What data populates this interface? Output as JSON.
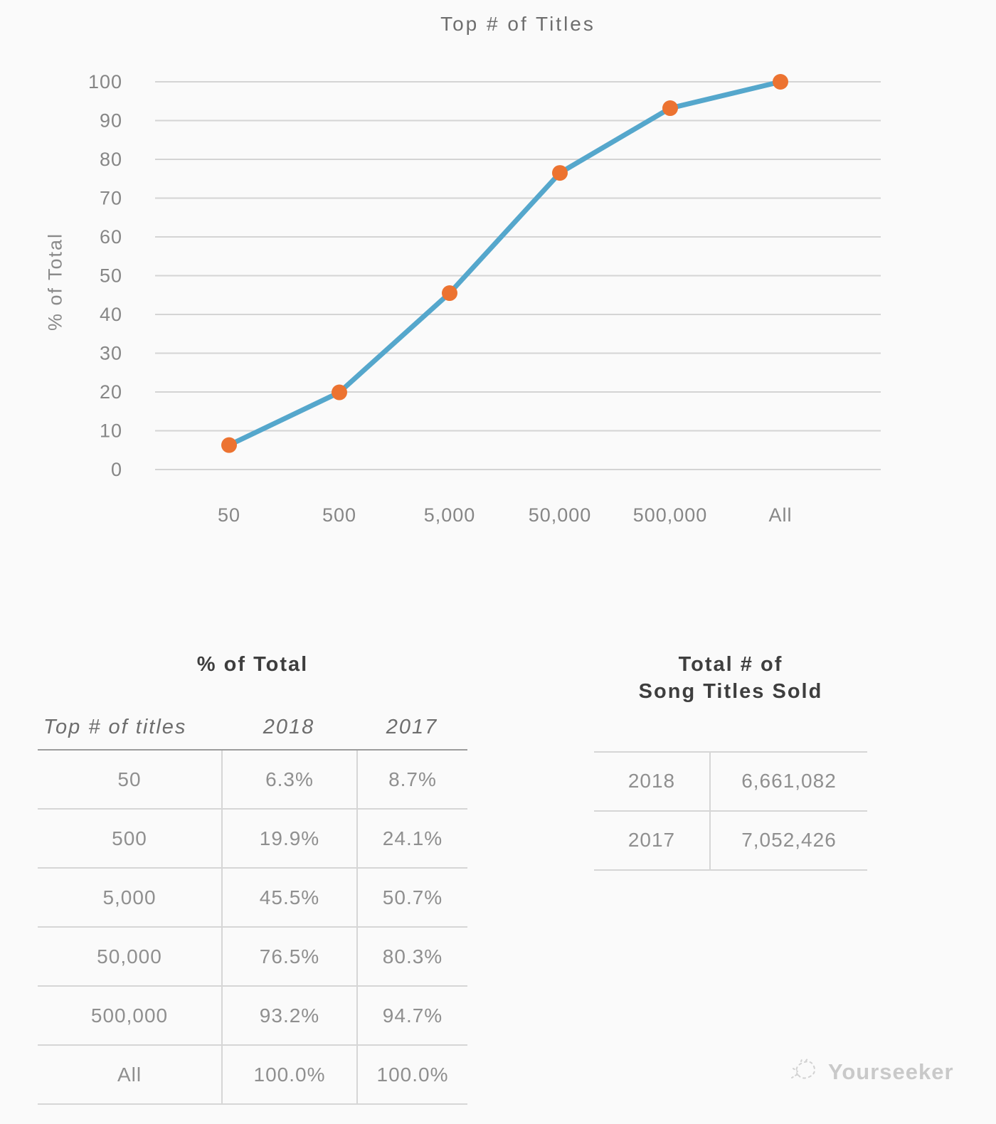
{
  "chart_data": {
    "type": "line",
    "title": "Top # of Titles",
    "ylabel": "% of Total",
    "xlabel": "",
    "categories": [
      "50",
      "500",
      "5,000",
      "50,000",
      "500,000",
      "All"
    ],
    "series": [
      {
        "name": "2018",
        "values": [
          6.3,
          19.9,
          45.5,
          76.5,
          93.2,
          100.0
        ]
      }
    ],
    "ylim": [
      0,
      100
    ],
    "ytick_step": 10,
    "grid": true,
    "legend_position": "none",
    "line_color": "#55a7cc",
    "marker_color": "#ec7331",
    "grid_color": "#d4d4d4",
    "axis_text_color": "#868686"
  },
  "tables": {
    "pct": {
      "title": "% of Total",
      "headers": [
        "Top # of titles",
        "2018",
        "2017"
      ],
      "rows": [
        {
          "titles": "50",
          "y2018": "6.3%",
          "y2017": "8.7%"
        },
        {
          "titles": "500",
          "y2018": "19.9%",
          "y2017": "24.1%"
        },
        {
          "titles": "5,000",
          "y2018": "45.5%",
          "y2017": "50.7%"
        },
        {
          "titles": "50,000",
          "y2018": "76.5%",
          "y2017": "80.3%"
        },
        {
          "titles": "500,000",
          "y2018": "93.2%",
          "y2017": "94.7%"
        },
        {
          "titles": "All",
          "y2018": "100.0%",
          "y2017": "100.0%"
        }
      ]
    },
    "totals": {
      "title_line1": "Total # of",
      "title_line2": "Song Titles Sold",
      "rows": [
        {
          "year": "2018",
          "value": "6,661,082"
        },
        {
          "year": "2017",
          "value": "7,052,426"
        }
      ]
    }
  },
  "footer": {
    "brand": "Yourseeker"
  }
}
